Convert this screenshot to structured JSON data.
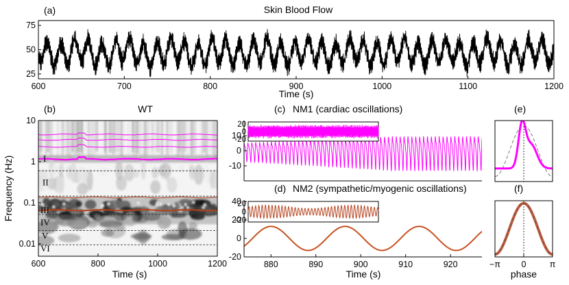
{
  "chart_data": [
    {
      "id": "a",
      "type": "line",
      "panel_label": "(a)",
      "title": "Skin Blood Flow",
      "xlabel": "Time (s)",
      "ylabel": "",
      "xlim": [
        600,
        1200
      ],
      "ylim": [
        20,
        80
      ],
      "xticks": [
        600,
        700,
        800,
        900,
        1000,
        1100,
        1200
      ],
      "yticks": [
        25,
        50,
        75
      ],
      "series": [
        {
          "name": "skin blood flow",
          "color": "#000000",
          "mean": 47,
          "slow_amplitude": 12,
          "slow_period_s": 16,
          "cardiac_amplitude": 6,
          "noise": 5
        }
      ]
    },
    {
      "id": "b",
      "type": "heatmap",
      "panel_label": "(b)",
      "title": "WT",
      "xlabel": "Time (s)",
      "ylabel": "Frequency (Hz)",
      "xlim": [
        600,
        1200
      ],
      "ylim_log": [
        0.005,
        10
      ],
      "xticks": [
        600,
        800,
        1000,
        1200
      ],
      "yticks": [
        {
          "v": 10,
          "t": "10"
        },
        {
          "v": 1,
          "t": "1"
        },
        {
          "v": 0.1,
          "t": "0.1"
        },
        {
          "v": 0.01,
          "t": "0.01"
        }
      ],
      "bands": [
        {
          "label": "I",
          "f": 1.2
        },
        {
          "label": "II",
          "f": 0.32
        },
        {
          "label": "III",
          "f": 0.068
        },
        {
          "label": "IV",
          "f": 0.034
        },
        {
          "label": "V",
          "f": 0.016
        },
        {
          "label": "VI",
          "f": 0.008
        }
      ],
      "band_boundaries_hz": [
        0.6,
        0.145,
        0.052,
        0.021,
        0.0095
      ],
      "ridges": [
        {
          "name": "cardiac 1st harmonic",
          "color": "#ff00ff",
          "f": 1.15,
          "width": 2.2
        },
        {
          "name": "cardiac 2nd harmonic",
          "color": "#ff00ff",
          "f": 2.3,
          "width": 1
        },
        {
          "name": "cardiac 3rd harmonic",
          "color": "#ff00ff",
          "f": 3.4,
          "width": 1
        },
        {
          "name": "cardiac 4th harmonic",
          "color": "#ff00ff",
          "f": 4.6,
          "width": 1
        },
        {
          "name": "sympathetic/myogenic ridge",
          "color": "#b5401a",
          "f": 0.066,
          "width": 2
        },
        {
          "name": "sympathetic/myogenic band edge",
          "color": "#b5401a",
          "f": 0.135,
          "width": 1
        }
      ]
    },
    {
      "id": "c",
      "type": "line",
      "panel_label": "(c)",
      "title": "NM1 (cardiac oscillations)",
      "xlim": [
        874,
        927
      ],
      "ylim": [
        -20,
        20
      ],
      "yticks": [
        {
          "v": -10,
          "t": "-10"
        },
        {
          "v": 0,
          "t": "0"
        },
        {
          "v": 10,
          "t": "10"
        }
      ],
      "color": "#ff00ff",
      "frequency_hz": 1.15,
      "amplitude_start": 6,
      "amplitude_end": 11,
      "inset": {
        "yticks": [
          20,
          0,
          -20
        ],
        "ylim": [
          -25,
          25
        ],
        "amplitude": 18
      }
    },
    {
      "id": "d",
      "type": "line",
      "panel_label": "(d)",
      "title": "NM2 (sympathetic/myogenic oscillations)",
      "xlabel": "Time (s)",
      "xlim": [
        874,
        927
      ],
      "ylim": [
        -20,
        40
      ],
      "xticks": [
        880,
        890,
        900,
        910,
        920
      ],
      "yticks": [
        {
          "v": -20,
          "t": "-20"
        },
        {
          "v": 0,
          "t": "0"
        },
        {
          "v": 20,
          "t": "20"
        },
        {
          "v": 40,
          "t": "40"
        }
      ],
      "color": "#b5401a",
      "frequency_hz": 0.0606,
      "amplitude": 13,
      "phase_peak_s": 880,
      "inset": {
        "yticks": [
          20,
          0,
          -20
        ],
        "ylim": [
          -25,
          25
        ],
        "amplitude": 16
      }
    },
    {
      "id": "e",
      "type": "line",
      "panel_label": "(e)",
      "xlim": [
        -3.1416,
        3.1416
      ],
      "color": "#ff00ff",
      "description": "normalized cardiac waveform vs phase"
    },
    {
      "id": "f",
      "type": "line",
      "panel_label": "(f)",
      "xlabel": "phase",
      "xlim": [
        -3.1416,
        3.1416
      ],
      "xticks": [
        {
          "v": -3.1416,
          "t": "−π"
        },
        {
          "v": 0,
          "t": "0"
        },
        {
          "v": 3.1416,
          "t": "π"
        }
      ],
      "color": "#b5401a",
      "description": "normalized sympathetic/myogenic waveform vs phase"
    }
  ]
}
